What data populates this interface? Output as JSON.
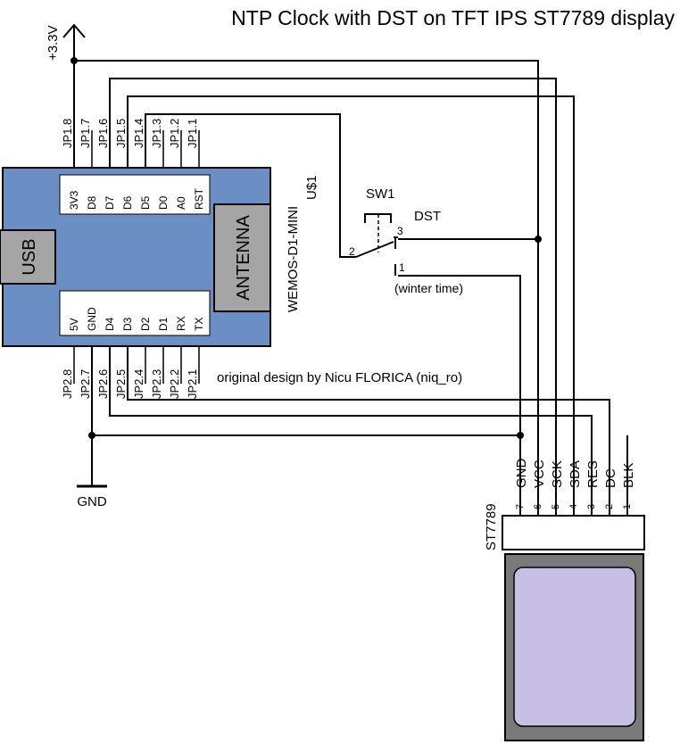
{
  "title": "NTP Clock with DST on TFT IPS ST7789 display",
  "supply_label": "+3.3V",
  "ground_label": "GND",
  "credit": "original design by Nicu FLORICA (niq_ro)",
  "board": {
    "name": "WEMOS-D1-MINI",
    "ref": "U$1",
    "usb_label": "USB",
    "antenna_label": "ANTENNA",
    "top_pins": [
      "3V3",
      "D8",
      "D7",
      "D6",
      "D5",
      "D0",
      "A0",
      "RST"
    ],
    "bottom_pins": [
      "5V",
      "GND",
      "D4",
      "D3",
      "D2",
      "D1",
      "RX",
      "TX"
    ],
    "top_jumpers": [
      "JP1.8",
      "JP1.7",
      "JP1.6",
      "JP1.5",
      "JP1.4",
      "JP1.3",
      "JP1.2",
      "JP1.1"
    ],
    "bottom_jumpers": [
      "JP2.8",
      "JP2.7",
      "JP2.6",
      "JP2.5",
      "JP2.4",
      "JP2.3",
      "JP2.2",
      "JP2.1"
    ]
  },
  "switch": {
    "ref": "SW1",
    "function": "DST",
    "pin_common": "2",
    "pin_dst": "3",
    "pin_winter": "1",
    "winter_label": "(winter time)"
  },
  "display": {
    "name": "ST7789",
    "pins": [
      {
        "num": "7",
        "name": "GND"
      },
      {
        "num": "6",
        "name": "VCC"
      },
      {
        "num": "5",
        "name": "SCK"
      },
      {
        "num": "4",
        "name": "SDA"
      },
      {
        "num": "3",
        "name": "RES"
      },
      {
        "num": "2",
        "name": "DC"
      },
      {
        "num": "1",
        "name": "BLK"
      }
    ]
  },
  "colors": {
    "board_fill": "#6b8fc4",
    "label_box": "#ffffff",
    "module_grey": "#a5a5a5",
    "screen_frame": "#7a7a7a",
    "screen_fill": "#c8c0e4"
  }
}
